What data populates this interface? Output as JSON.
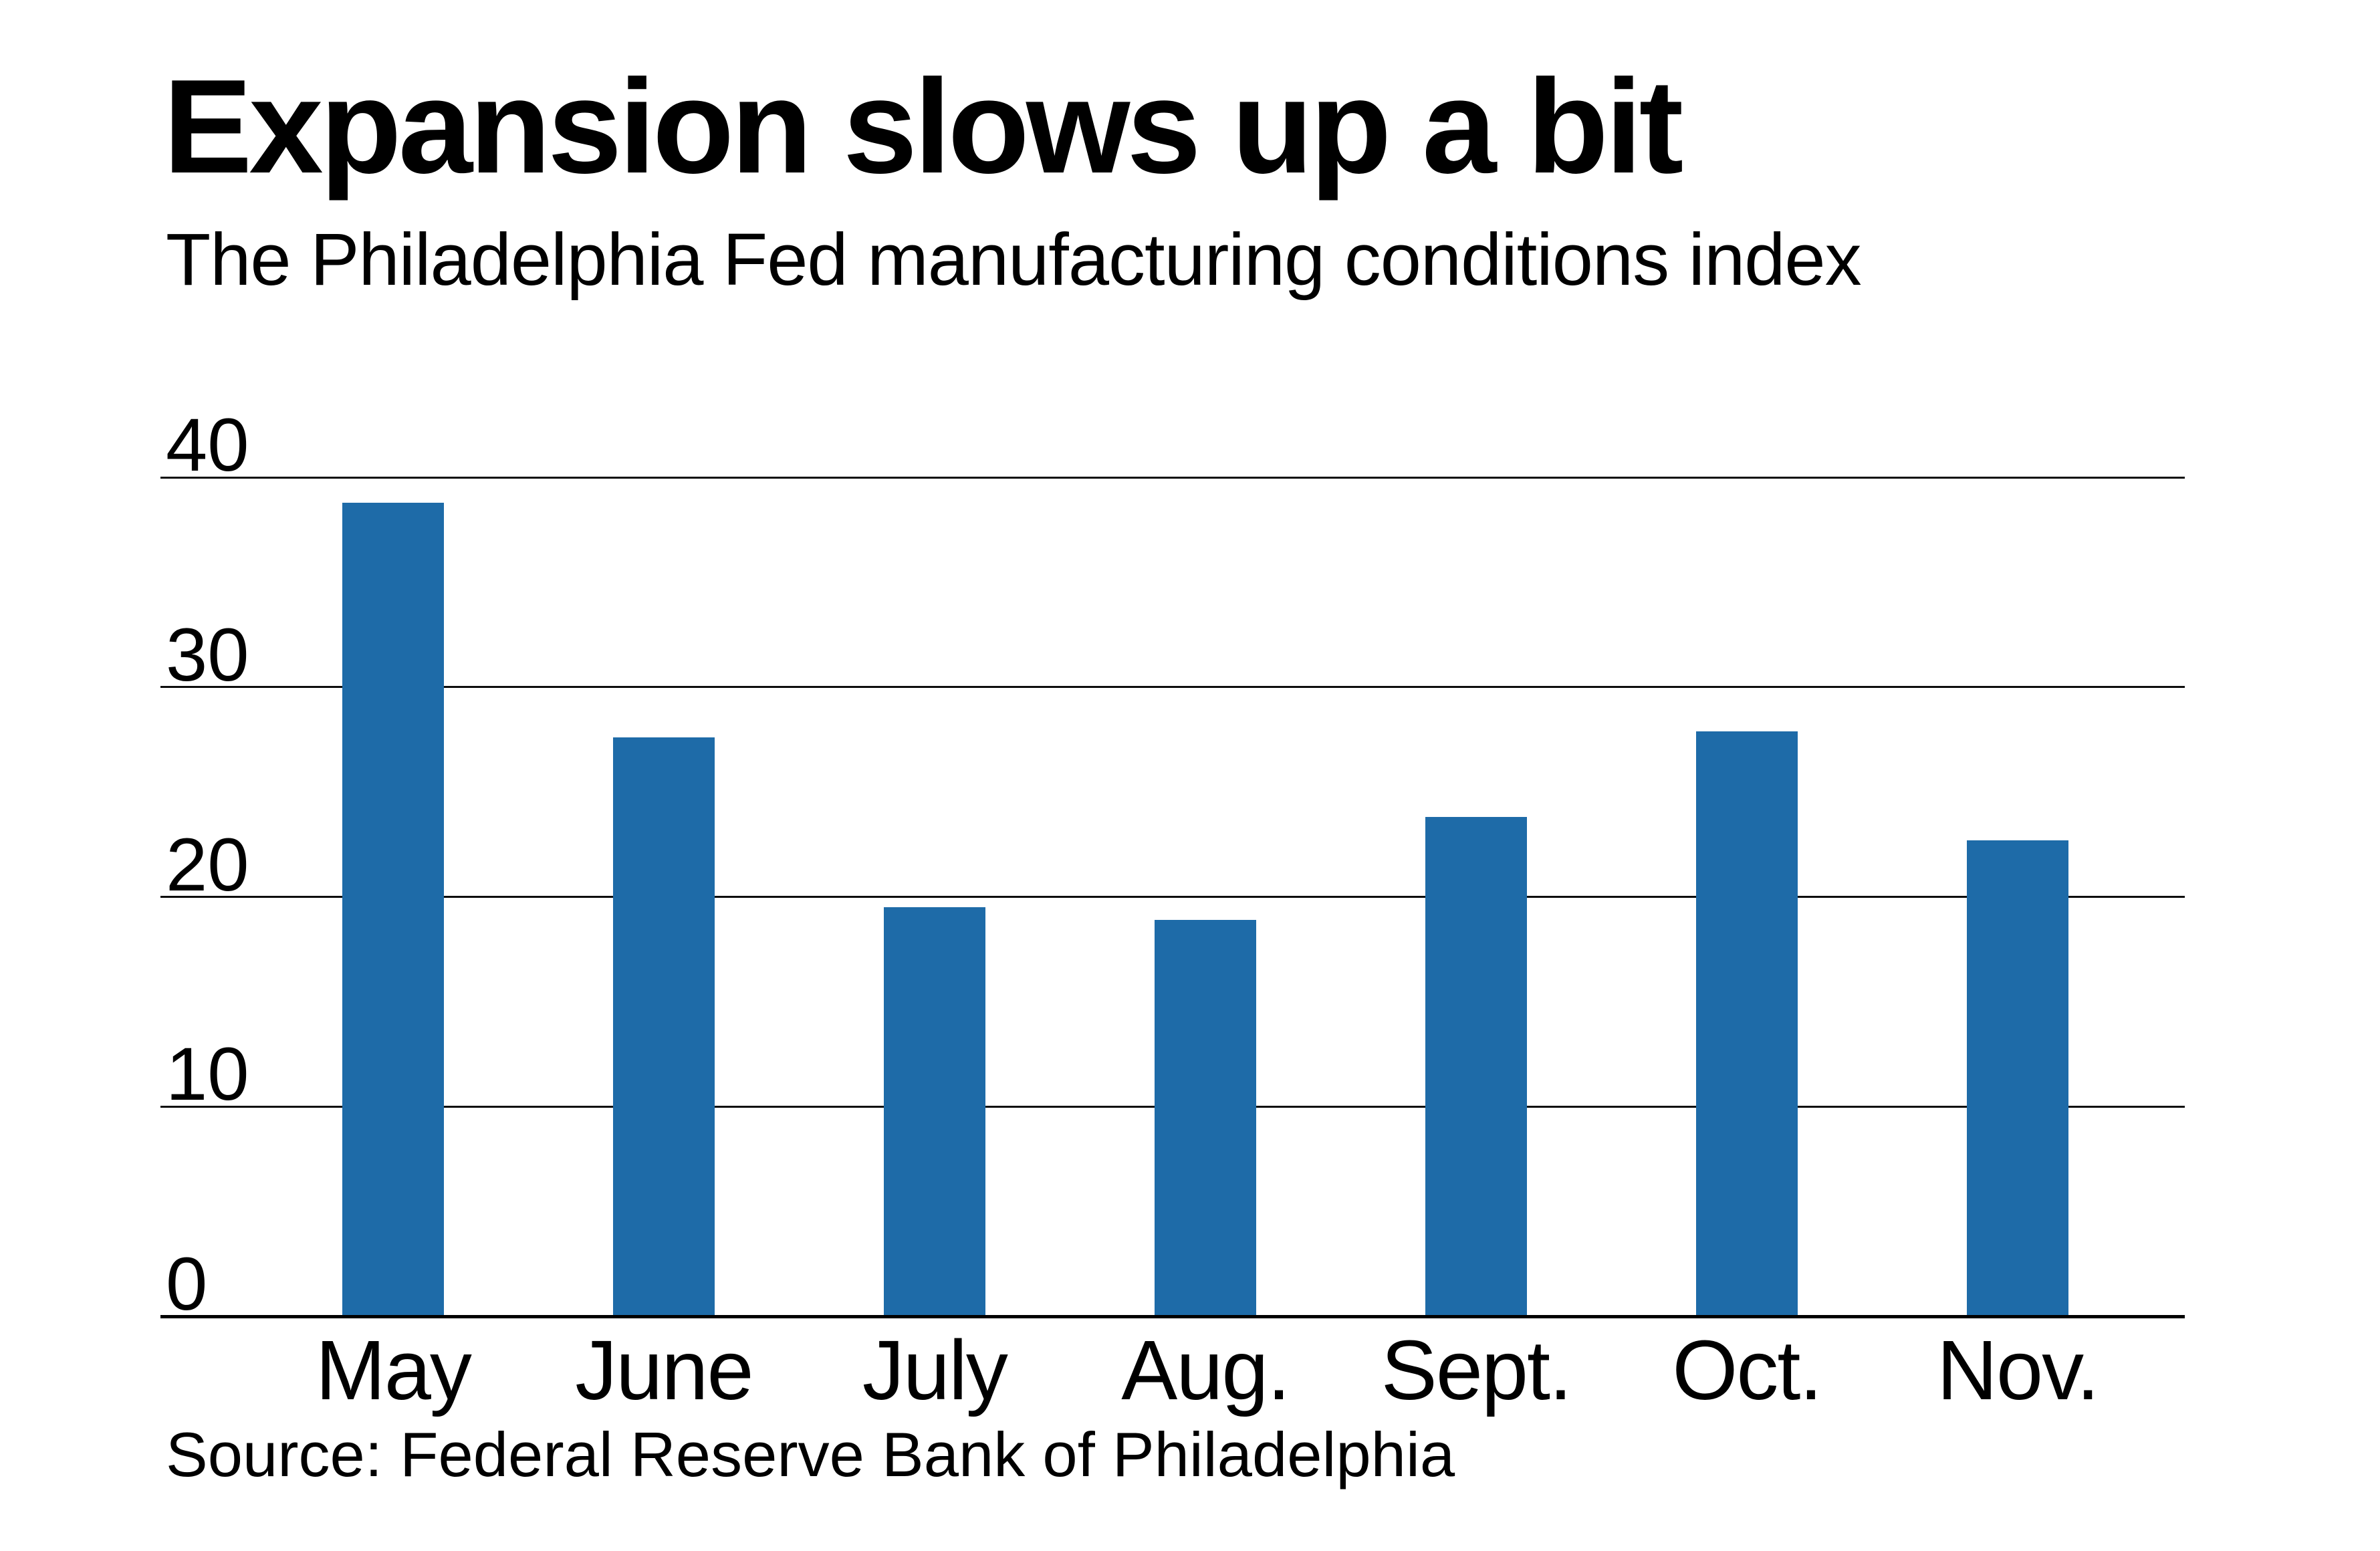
{
  "chart_data": {
    "type": "bar",
    "title": "Expansion slows up a bit",
    "subtitle": "The Philadelphia Fed manufacturing conditions index",
    "source": "Source: Federal Reserve Bank of Philadelphia",
    "categories": [
      "May",
      "June",
      "July",
      "Aug.",
      "Sept.",
      "Oct.",
      "Nov."
    ],
    "values": [
      38.8,
      27.6,
      19.5,
      18.9,
      23.8,
      27.9,
      22.7
    ],
    "series_name": "Philadelphia Fed manufacturing conditions index",
    "ylim": [
      0,
      40
    ],
    "yticks": [
      0,
      10,
      20,
      30,
      40
    ],
    "grid": true,
    "legend_position": "none",
    "bar_color": "#1e6ba8",
    "gridline_color": "#0d0d0d",
    "background_color": "#ffffff",
    "text_color": "#000000"
  }
}
